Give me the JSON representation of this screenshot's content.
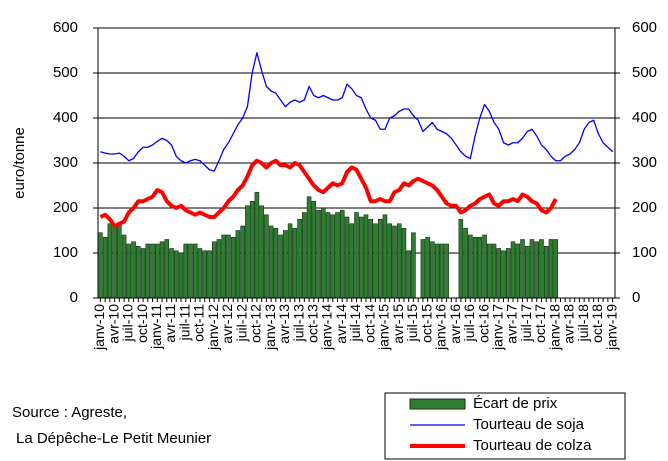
{
  "chart_data": {
    "type": "combo",
    "ylabel": "euro/tonne",
    "source": [
      "Source : Agreste,",
      "La Dépêche-Le Petit Meunier"
    ],
    "categories": [
      "janv-10",
      null,
      null,
      "avr-10",
      null,
      null,
      "juil-10",
      null,
      null,
      "oct-10",
      null,
      null,
      "janv-11",
      null,
      null,
      "avr-11",
      null,
      null,
      "juil-11",
      null,
      null,
      "oct-11",
      null,
      null,
      "janv-12",
      null,
      null,
      "avr-12",
      null,
      null,
      "juil-12",
      null,
      null,
      "oct-12",
      null,
      null,
      "janv-13",
      null,
      null,
      "avr-13",
      null,
      null,
      "juil-13",
      null,
      null,
      "oct-13",
      null,
      null,
      "janv-14",
      null,
      null,
      "avr-14",
      null,
      null,
      "juil-14",
      null,
      null,
      "oct-14",
      null,
      null,
      "janv-15",
      null,
      null,
      "avr-15",
      null,
      null,
      "juil-15",
      null,
      null,
      "oct-15",
      null,
      null,
      "janv-16",
      null,
      null,
      "avr-16",
      null,
      null,
      "juil-16",
      null,
      null,
      "oct-16",
      null,
      null,
      "janv-17",
      null,
      null,
      "avr-17",
      null,
      null,
      "juil-17",
      null,
      null,
      "oct-17",
      null,
      null,
      "janv-18",
      null,
      null,
      "avr-18",
      null,
      null,
      "juil-18",
      null,
      null,
      "oct-18",
      null,
      null,
      "janv-19"
    ],
    "series": [
      {
        "name": "Écart de prix",
        "kind": "bar",
        "color": "#2e7d32",
        "values": [
          145,
          135,
          165,
          165,
          165,
          140,
          120,
          125,
          115,
          110,
          120,
          120,
          120,
          125,
          130,
          110,
          105,
          100,
          120,
          120,
          120,
          110,
          105,
          105,
          125,
          130,
          140,
          140,
          135,
          150,
          160,
          205,
          215,
          235,
          205,
          185,
          160,
          155,
          140,
          150,
          165,
          155,
          175,
          190,
          225,
          215,
          195,
          200,
          190,
          185,
          190,
          195,
          180,
          165,
          190,
          180,
          185,
          175,
          165,
          175,
          185,
          165,
          160,
          165,
          155,
          105,
          145,
          null,
          130,
          135,
          125,
          120,
          120,
          120,
          null,
          null,
          175,
          155,
          140,
          135,
          135,
          140,
          120,
          120,
          110,
          105,
          110,
          125,
          120,
          130,
          115,
          130,
          125,
          130,
          115,
          130,
          130,
          null,
          null,
          null,
          null,
          null,
          null,
          null,
          null,
          null,
          null,
          null,
          null
        ]
      },
      {
        "name": "Tourteau de soja",
        "kind": "line",
        "color": "#0000ff",
        "values": [
          325,
          322,
          320,
          320,
          322,
          315,
          305,
          310,
          325,
          335,
          335,
          340,
          348,
          355,
          350,
          340,
          315,
          305,
          300,
          305,
          308,
          305,
          295,
          285,
          282,
          305,
          330,
          345,
          365,
          385,
          400,
          425,
          500,
          545,
          505,
          470,
          460,
          455,
          440,
          425,
          435,
          440,
          435,
          440,
          470,
          450,
          445,
          450,
          445,
          440,
          440,
          445,
          475,
          465,
          450,
          445,
          420,
          400,
          395,
          375,
          375,
          400,
          405,
          415,
          420,
          420,
          405,
          395,
          370,
          380,
          390,
          375,
          370,
          365,
          355,
          340,
          325,
          315,
          310,
          360,
          400,
          430,
          415,
          390,
          375,
          345,
          340,
          345,
          345,
          355,
          370,
          375,
          360,
          340,
          330,
          315,
          305,
          305,
          315,
          320,
          330,
          345,
          375,
          390,
          395,
          365,
          345,
          335,
          325
        ]
      },
      {
        "name": "Tourteau de colza",
        "kind": "line",
        "color": "#ff0000",
        "values": [
          180,
          185,
          175,
          160,
          165,
          170,
          190,
          200,
          215,
          215,
          220,
          225,
          240,
          235,
          215,
          205,
          200,
          205,
          195,
          190,
          185,
          190,
          185,
          180,
          180,
          190,
          200,
          215,
          225,
          240,
          250,
          270,
          295,
          305,
          300,
          290,
          300,
          305,
          295,
          295,
          290,
          300,
          295,
          280,
          265,
          250,
          240,
          235,
          245,
          255,
          250,
          255,
          280,
          290,
          285,
          265,
          245,
          215,
          215,
          220,
          215,
          215,
          235,
          240,
          255,
          250,
          260,
          265,
          260,
          255,
          250,
          240,
          225,
          210,
          205,
          205,
          190,
          195,
          205,
          210,
          220,
          225,
          230,
          210,
          205,
          215,
          215,
          220,
          215,
          230,
          225,
          215,
          210,
          195,
          190,
          200,
          220,
          null,
          null,
          null,
          null,
          null,
          null,
          null,
          null,
          null,
          null,
          null,
          null
        ]
      }
    ],
    "ylim": [
      0,
      600
    ],
    "yticks": [
      0,
      100,
      200,
      300,
      400,
      500,
      600
    ],
    "y2lim": [
      0,
      600
    ],
    "y2ticks": [
      0,
      100,
      200,
      300,
      400,
      500,
      600
    ],
    "grid": true,
    "legend": "bottom-right"
  }
}
